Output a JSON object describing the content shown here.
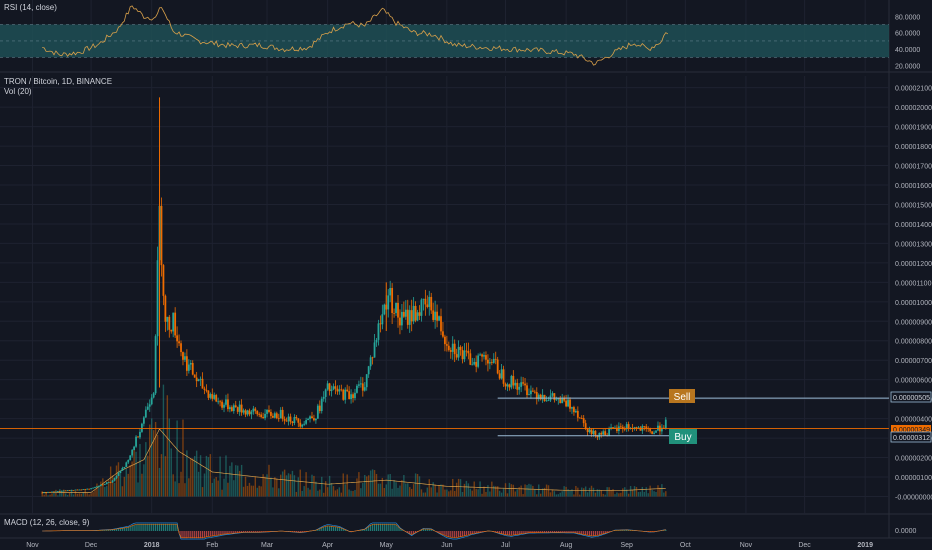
{
  "rsi": {
    "title": "RSI (14, close)",
    "ticks": [
      "80.0000",
      "60.0000",
      "40.0000",
      "20.0000"
    ],
    "tick_values": [
      80,
      60,
      40,
      20
    ],
    "band": [
      30,
      70
    ],
    "ylim": [
      12,
      100
    ]
  },
  "main": {
    "symbol_line": "TRON / Bitcoin, 1D, BINANCE",
    "vol_line": "Vol (20)",
    "ticks": [
      "0.00002100",
      "0.00002000",
      "0.00001900",
      "0.00001800",
      "0.00001700",
      "0.00001600",
      "0.00001500",
      "0.00001400",
      "0.00001300",
      "0.00001200",
      "0.00001100",
      "0.00001000",
      "0.00000900",
      "0.00000800",
      "0.00000700",
      "0.00000600",
      "0.00000500",
      "0.00000400",
      "0.00000300",
      "0.00000200",
      "0.00000100",
      "-0.00000000"
    ],
    "ylim": [
      -9e-07,
      2.16e-05
    ],
    "sell_price": "0.00000505",
    "buy_price": "0.00000312",
    "last_price": "0.00000349",
    "sell_label": "Sell",
    "buy_label": "Buy"
  },
  "macd": {
    "title": "MACD (12, 26, close, 9)",
    "tick": "0.0000"
  },
  "xaxis": {
    "labels": [
      "Nov",
      "Dec",
      "2018",
      "Feb",
      "Mar",
      "Apr",
      "May",
      "Jun",
      "Jul",
      "Aug",
      "Sep",
      "Oct",
      "Nov",
      "Dec",
      "2019"
    ]
  },
  "colors": {
    "background": "#131722",
    "up": "#26a69a",
    "down": "#ef6c00",
    "rsi_line": "#d8a04a",
    "rsi_band": "#1f4f55",
    "level_line": "#9bbcd6",
    "sell_fill": "#b8761f",
    "buy_fill": "#21917b",
    "grid": "#1e2230",
    "axis_text": "#d1d4dc",
    "last_price_line": "#ef6c00"
  },
  "chart_data": {
    "type": "candlestick",
    "title": "TRON / Bitcoin, 1D, BINANCE",
    "x_unit": "date",
    "x_range": [
      "2017-10-20",
      "2019-01-05"
    ],
    "ylim": [
      -9e-07,
      2.16e-05
    ],
    "price_path": [
      [
        "2017-11-06",
        2e-07
      ],
      [
        "2017-12-01",
        4e-07
      ],
      [
        "2017-12-12",
        8e-07
      ],
      [
        "2017-12-20",
        1.8e-06
      ],
      [
        "2017-12-27",
        3.8e-06
      ],
      [
        "2018-01-02",
        5.6e-06
      ],
      [
        "2018-01-05",
        1.45e-05
      ],
      [
        "2018-01-08",
        8.8e-06
      ],
      [
        "2018-01-12",
        9e-06
      ],
      [
        "2018-01-17",
        7.2e-06
      ],
      [
        "2018-01-25",
        5.8e-06
      ],
      [
        "2018-02-05",
        4.8e-06
      ],
      [
        "2018-02-15",
        4.5e-06
      ],
      [
        "2018-02-25",
        4.2e-06
      ],
      [
        "2018-03-08",
        4.2e-06
      ],
      [
        "2018-03-18",
        3.8e-06
      ],
      [
        "2018-03-26",
        4.2e-06
      ],
      [
        "2018-04-01",
        5.5e-06
      ],
      [
        "2018-04-12",
        5.2e-06
      ],
      [
        "2018-04-20",
        5.8e-06
      ],
      [
        "2018-04-28",
        9e-06
      ],
      [
        "2018-05-02",
        1.05e-05
      ],
      [
        "2018-05-08",
        9e-06
      ],
      [
        "2018-05-16",
        9.5e-06
      ],
      [
        "2018-05-24",
        9.8e-06
      ],
      [
        "2018-06-01",
        8e-06
      ],
      [
        "2018-06-12",
        7e-06
      ],
      [
        "2018-06-22",
        7.2e-06
      ],
      [
        "2018-07-01",
        6e-06
      ],
      [
        "2018-07-15",
        5.4e-06
      ],
      [
        "2018-07-26",
        5e-06
      ],
      [
        "2018-08-05",
        4.6e-06
      ],
      [
        "2018-08-14",
        3.2e-06
      ],
      [
        "2018-08-22",
        3.3e-06
      ],
      [
        "2018-09-01",
        3.6e-06
      ],
      [
        "2018-09-10",
        3.4e-06
      ],
      [
        "2018-09-15",
        3.3e-06
      ],
      [
        "2018-09-21",
        3.8e-06
      ]
    ],
    "spikes": [
      [
        "2018-01-05",
        2.05e-05,
        5.6e-06
      ],
      [
        "2018-05-01",
        1.1e-05,
        8.5e-06
      ],
      [
        "2018-08-16",
        2.8e-06,
        2.8e-06
      ]
    ],
    "horizontal_levels": [
      {
        "label": "Sell",
        "value": 5.05e-06
      },
      {
        "label": "Buy",
        "value": 3.12e-06
      },
      {
        "label": "",
        "value": 3.49e-06
      }
    ],
    "rsi_path": [
      [
        "2017-11-06",
        42
      ],
      [
        "2017-11-15",
        33
      ],
      [
        "2017-11-25",
        36
      ],
      [
        "2017-12-05",
        46
      ],
      [
        "2017-12-15",
        65
      ],
      [
        "2017-12-22",
        93
      ],
      [
        "2017-12-28",
        80
      ],
      [
        "2018-01-03",
        78
      ],
      [
        "2018-01-06",
        92
      ],
      [
        "2018-01-12",
        62
      ],
      [
        "2018-01-25",
        50
      ],
      [
        "2018-02-10",
        44
      ],
      [
        "2018-02-25",
        45
      ],
      [
        "2018-03-10",
        40
      ],
      [
        "2018-03-22",
        42
      ],
      [
        "2018-04-02",
        62
      ],
      [
        "2018-04-12",
        72
      ],
      [
        "2018-04-20",
        68
      ],
      [
        "2018-04-29",
        88
      ],
      [
        "2018-05-06",
        72
      ],
      [
        "2018-05-15",
        60
      ],
      [
        "2018-05-25",
        58
      ],
      [
        "2018-06-05",
        45
      ],
      [
        "2018-06-20",
        42
      ],
      [
        "2018-07-05",
        40
      ],
      [
        "2018-07-20",
        38
      ],
      [
        "2018-08-05",
        34
      ],
      [
        "2018-08-16",
        22
      ],
      [
        "2018-08-25",
        35
      ],
      [
        "2018-09-05",
        48
      ],
      [
        "2018-09-12",
        40
      ],
      [
        "2018-09-19",
        50
      ],
      [
        "2018-09-21",
        62
      ],
      [
        "2018-09-22",
        58
      ]
    ],
    "volume_path": [
      [
        "2017-11-06",
        2e-07
      ],
      [
        "2017-12-01",
        2e-07
      ],
      [
        "2017-12-15",
        1.2e-06
      ],
      [
        "2017-12-28",
        1.8e-06
      ],
      [
        "2018-01-05",
        3.3e-06
      ],
      [
        "2018-01-15",
        2.2e-06
      ],
      [
        "2018-02-01",
        1.2e-06
      ],
      [
        "2018-03-01",
        9e-07
      ],
      [
        "2018-04-01",
        6e-07
      ],
      [
        "2018-05-01",
        8e-07
      ],
      [
        "2018-06-01",
        5e-07
      ],
      [
        "2018-07-01",
        4e-07
      ],
      [
        "2018-08-01",
        3e-07
      ],
      [
        "2018-09-01",
        3e-07
      ],
      [
        "2018-09-21",
        4e-07
      ]
    ]
  }
}
